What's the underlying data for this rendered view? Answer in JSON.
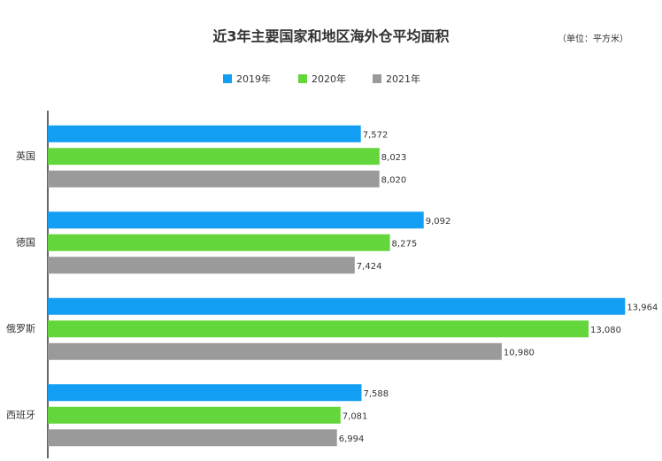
{
  "chart_data": {
    "type": "barh",
    "title": "近3年主要国家和地区海外仓平均面积",
    "subtitle": "（单位：平方米）",
    "categories": [
      "英国",
      "德国",
      "俄罗斯",
      "西班牙"
    ],
    "series": [
      {
        "name": "2019年",
        "color": "#129ef2",
        "values": [
          7572,
          9092,
          13964,
          7588
        ],
        "value_labels": [
          "7,572",
          "9,092",
          "13,964",
          "7,588"
        ]
      },
      {
        "name": "2020年",
        "color": "#62d63b",
        "values": [
          8023,
          8275,
          13080,
          7081
        ],
        "value_labels": [
          "8,023",
          "8,275",
          "13,080",
          "7,081"
        ]
      },
      {
        "name": "2021年",
        "color": "#9a9a9a",
        "values": [
          8020,
          7424,
          10980,
          6994
        ],
        "value_labels": [
          "8,020",
          "7,424",
          "10,980",
          "6,994"
        ]
      }
    ],
    "xlim": [
      0,
      14000
    ]
  }
}
